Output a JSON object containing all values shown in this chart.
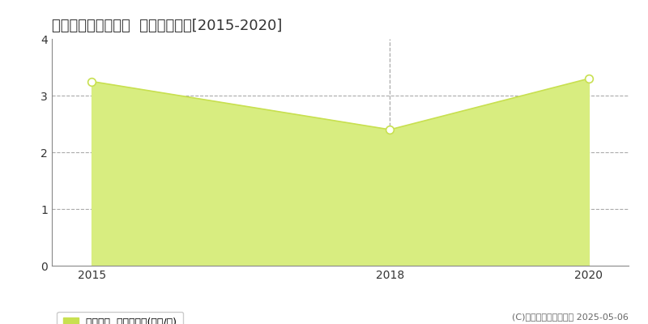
{
  "title": "上川郡新得町一条北  土地価格推移[2015-2020]",
  "years": [
    2015,
    2018,
    2020
  ],
  "values": [
    3.25,
    2.4,
    3.3
  ],
  "line_color": "#c8e050",
  "fill_color": "#d8ed80",
  "fill_alpha": 1.0,
  "marker_color": "#c8e050",
  "marker_face": "white",
  "marker_size": 7,
  "vline_x": 2018,
  "vline_color": "#aaaaaa",
  "vline_style": "--",
  "grid_color": "#aaaaaa",
  "grid_style": "--",
  "ylim": [
    0,
    4
  ],
  "yticks": [
    0,
    1,
    2,
    3,
    4
  ],
  "xticks": [
    2015,
    2018,
    2020
  ],
  "xlim": [
    2014.6,
    2020.4
  ],
  "legend_label": "土地価格  平均坪単価(万円/坪)",
  "legend_color": "#c8e050",
  "copyright": "(C)土地価格ドットコム 2025-05-06",
  "bg_color": "#ffffff",
  "title_fontsize": 13,
  "tick_fontsize": 10,
  "legend_fontsize": 9,
  "copyright_fontsize": 8,
  "spine_color": "#888888",
  "text_color": "#333333",
  "copyright_color": "#666666"
}
